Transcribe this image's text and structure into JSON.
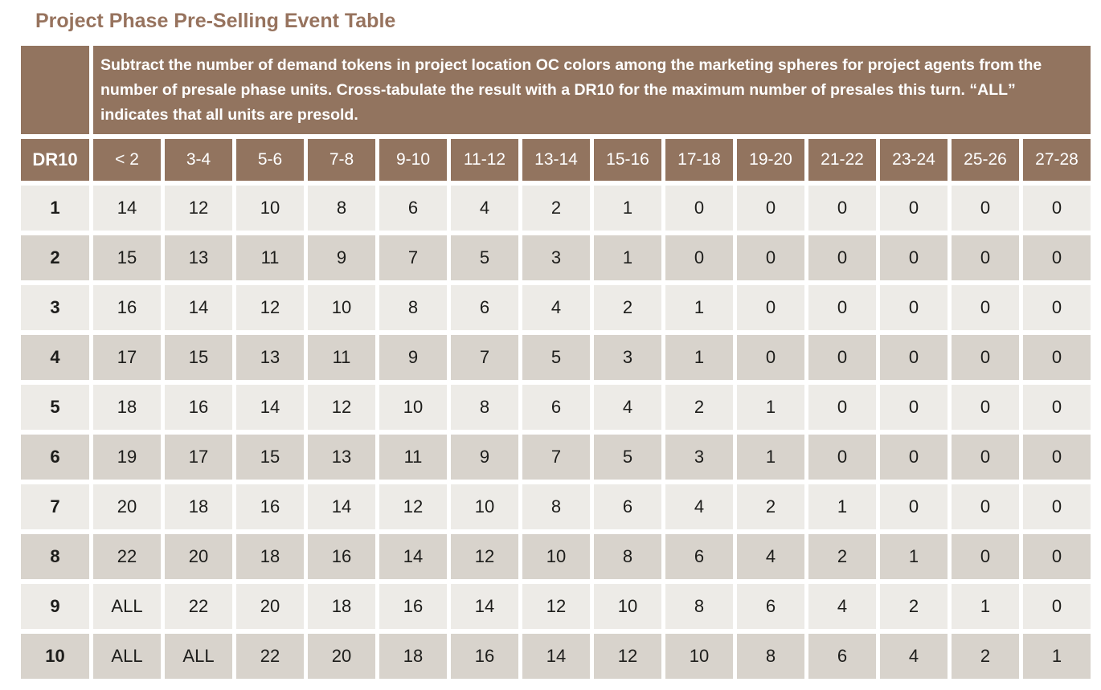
{
  "title": "Project Phase Pre-Selling Event Table",
  "table": {
    "description": "Subtract the number of demand tokens in project location OC colors among the marketing spheres for project agents from the number of presale phase units. Cross-tabulate the result with a DR10 for the maximum number of presales this turn. “ALL” indicates that all units are presold.",
    "corner_label": "DR10",
    "column_headers": [
      "< 2",
      "3-4",
      "5-6",
      "7-8",
      "9-10",
      "11-12",
      "13-14",
      "15-16",
      "17-18",
      "19-20",
      "21-22",
      "23-24",
      "25-26",
      "27-28"
    ],
    "rows": [
      {
        "dr": "1",
        "values": [
          "14",
          "12",
          "10",
          "8",
          "6",
          "4",
          "2",
          "1",
          "0",
          "0",
          "0",
          "0",
          "0",
          "0"
        ]
      },
      {
        "dr": "2",
        "values": [
          "15",
          "13",
          "11",
          "9",
          "7",
          "5",
          "3",
          "1",
          "0",
          "0",
          "0",
          "0",
          "0",
          "0"
        ]
      },
      {
        "dr": "3",
        "values": [
          "16",
          "14",
          "12",
          "10",
          "8",
          "6",
          "4",
          "2",
          "1",
          "0",
          "0",
          "0",
          "0",
          "0"
        ]
      },
      {
        "dr": "4",
        "values": [
          "17",
          "15",
          "13",
          "11",
          "9",
          "7",
          "5",
          "3",
          "1",
          "0",
          "0",
          "0",
          "0",
          "0"
        ]
      },
      {
        "dr": "5",
        "values": [
          "18",
          "16",
          "14",
          "12",
          "10",
          "8",
          "6",
          "4",
          "2",
          "1",
          "0",
          "0",
          "0",
          "0"
        ]
      },
      {
        "dr": "6",
        "values": [
          "19",
          "17",
          "15",
          "13",
          "11",
          "9",
          "7",
          "5",
          "3",
          "1",
          "0",
          "0",
          "0",
          "0"
        ]
      },
      {
        "dr": "7",
        "values": [
          "20",
          "18",
          "16",
          "14",
          "12",
          "10",
          "8",
          "6",
          "4",
          "2",
          "1",
          "0",
          "0",
          "0"
        ]
      },
      {
        "dr": "8",
        "values": [
          "22",
          "20",
          "18",
          "16",
          "14",
          "12",
          "10",
          "8",
          "6",
          "4",
          "2",
          "1",
          "0",
          "0"
        ]
      },
      {
        "dr": "9",
        "values": [
          "ALL",
          "22",
          "20",
          "18",
          "16",
          "14",
          "12",
          "10",
          "8",
          "6",
          "4",
          "2",
          "1",
          "0"
        ]
      },
      {
        "dr": "10",
        "values": [
          "ALL",
          "ALL",
          "22",
          "20",
          "18",
          "16",
          "14",
          "12",
          "10",
          "8",
          "6",
          "4",
          "2",
          "1"
        ]
      }
    ],
    "colors": {
      "header_brown": "#92745f",
      "row_light": "#edebe7",
      "row_dark": "#d8d3cc",
      "title_text": "#97735e",
      "cell_text": "#1d1d1b"
    }
  }
}
